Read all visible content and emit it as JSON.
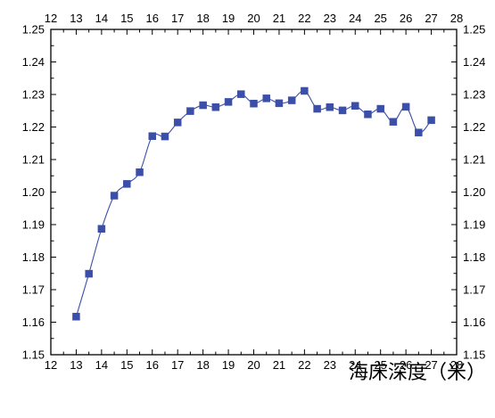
{
  "chart_data": {
    "type": "line",
    "title": "",
    "xlabel": "海床深度（米）",
    "ylabel": "",
    "xlim": [
      12,
      28
    ],
    "ylim": [
      1.15,
      1.25
    ],
    "x_ticks": [
      12,
      13,
      14,
      15,
      16,
      17,
      18,
      19,
      20,
      21,
      22,
      23,
      24,
      25,
      26,
      27,
      28
    ],
    "x_tick_labels": [
      "12",
      "13",
      "14",
      "15",
      "16",
      "17",
      "18",
      "19",
      "20",
      "21",
      "22",
      "23",
      "24",
      "25",
      "26",
      "27",
      "28"
    ],
    "y_ticks": [
      1.15,
      1.16,
      1.17,
      1.18,
      1.19,
      1.2,
      1.21,
      1.22,
      1.23,
      1.24,
      1.25
    ],
    "y_tick_labels": [
      "1.15",
      "1.16",
      "1.17",
      "1.18",
      "1.19",
      "1.20",
      "1.21",
      "1.22",
      "1.23",
      "1.24",
      "1.25"
    ],
    "grid": false,
    "legend": "none",
    "mirror_axes": true,
    "marker": "square",
    "line_style": "smooth",
    "series_color": "#3c4fa8",
    "series": [
      {
        "x": [
          13,
          13.5,
          14,
          14.5,
          15,
          15.5,
          16,
          16.5,
          17,
          17.5,
          18,
          18.5,
          19,
          19.5,
          20,
          20.5,
          21,
          21.5,
          22,
          22.5,
          23,
          23.5,
          24,
          24.5,
          25,
          25.5,
          26,
          26.5,
          27
        ],
        "values": [
          1.1617,
          1.1749,
          1.1887,
          1.1989,
          1.2025,
          1.2061,
          1.2172,
          1.2171,
          1.2214,
          1.2249,
          1.2267,
          1.2261,
          1.2277,
          1.2301,
          1.2272,
          1.2288,
          1.2273,
          1.2282,
          1.2311,
          1.2256,
          1.2261,
          1.2251,
          1.2265,
          1.2239,
          1.2256,
          1.2216,
          1.2262,
          1.2183,
          1.2221
        ]
      }
    ]
  }
}
